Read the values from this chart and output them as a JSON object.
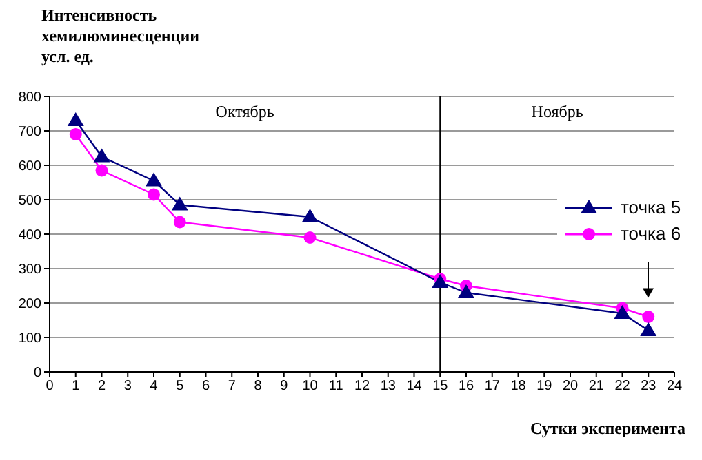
{
  "chart_data": {
    "type": "line",
    "ylabel": "Интенсивность хемилюминесценции усл. ед.",
    "xlabel": "Сутки эксперимента",
    "xlim": [
      0,
      24
    ],
    "xticks": [
      0,
      1,
      2,
      3,
      4,
      5,
      6,
      7,
      8,
      9,
      10,
      11,
      12,
      13,
      14,
      15,
      16,
      17,
      18,
      19,
      20,
      21,
      22,
      23,
      24
    ],
    "ylim": [
      0,
      800
    ],
    "yticks": [
      0,
      100,
      200,
      300,
      400,
      500,
      600,
      700,
      800
    ],
    "grid": "y",
    "legend": "right",
    "ref_lines": [
      {
        "axis": "x",
        "value": 15,
        "color": "#000000"
      }
    ],
    "annotations": [
      "Октябрь",
      "Ноябрь"
    ],
    "series": [
      {
        "name": "точка 5",
        "color": "#000080",
        "marker": "triangle",
        "x": [
          1,
          2,
          4,
          5,
          10,
          15,
          16,
          22,
          23
        ],
        "values": [
          730,
          625,
          555,
          485,
          450,
          260,
          230,
          170,
          120
        ]
      },
      {
        "name": "точка 6",
        "color": "#ff00ff",
        "marker": "circle",
        "x": [
          1,
          2,
          4,
          5,
          10,
          15,
          16,
          22,
          23
        ],
        "values": [
          690,
          585,
          515,
          435,
          390,
          270,
          250,
          185,
          160
        ]
      }
    ]
  }
}
